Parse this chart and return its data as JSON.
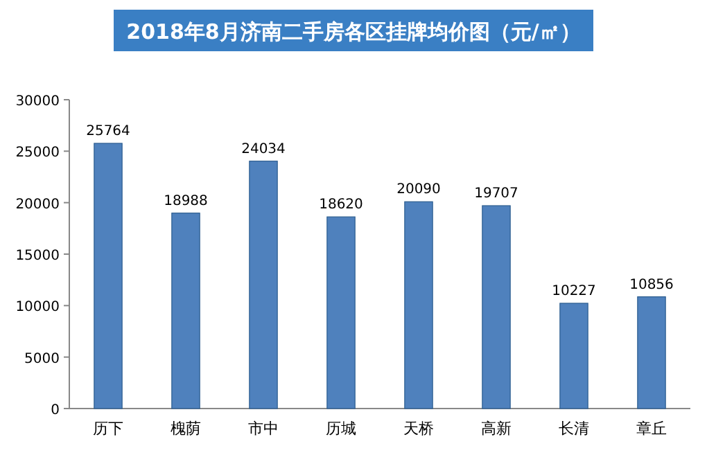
{
  "chart_data": {
    "type": "bar",
    "title": "2018年8月济南二手房各区挂牌均价图（元/㎡）",
    "categories": [
      "历下",
      "槐荫",
      "市中",
      "历城",
      "天桥",
      "高新",
      "长清",
      "章丘"
    ],
    "values": [
      25764,
      18988,
      24034,
      18620,
      20090,
      19707,
      10227,
      10856
    ],
    "color": "#4f81bd",
    "ylim": [
      0,
      30000
    ],
    "yticks": [
      0,
      5000,
      10000,
      15000,
      20000,
      25000,
      30000
    ],
    "grid": false,
    "data_labels": true
  }
}
